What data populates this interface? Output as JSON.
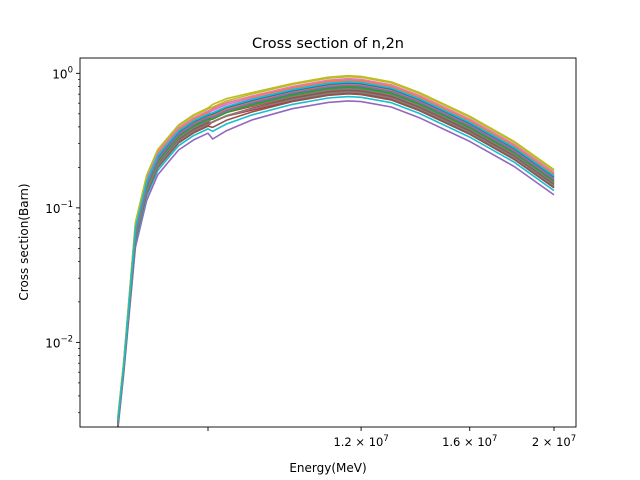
{
  "chart_data": {
    "type": "line",
    "title": "Cross section of n,2n",
    "xlabel": "Energy(MeV)",
    "ylabel": "Cross section(Barn)",
    "xscale": "log",
    "yscale": "log",
    "xlim": [
      5700000,
      21200000
    ],
    "ylim": [
      0.00235,
      1.3
    ],
    "grid": false,
    "legend": "none",
    "x_ticks": [
      {
        "value": 8000000,
        "label": ""
      },
      {
        "value": 12000000,
        "label": "1.2 × 10^7",
        "mant": "1.2",
        "exp": "7"
      },
      {
        "value": 16000000,
        "label": "1.6 × 10^7",
        "mant": "1.6",
        "exp": "7"
      },
      {
        "value": 20000000,
        "label": "2 × 10^7",
        "mant": "2",
        "exp": "7"
      }
    ],
    "y_ticks": [
      {
        "value": 0.01,
        "label": "10^-2",
        "base": "10",
        "exp": "−2"
      },
      {
        "value": 0.1,
        "label": "10^-1",
        "base": "10",
        "exp": "−1"
      },
      {
        "value": 1,
        "label": "10^0",
        "base": "10",
        "exp": "0"
      }
    ],
    "reference_curve": {
      "x": [
        6300000,
        6400000,
        6600000,
        6800000,
        7000000,
        7200000,
        7400000,
        7700000,
        8000000,
        8100000,
        8400000,
        9000000,
        10000000,
        11000000,
        11600000,
        12000000,
        13000000,
        14000000,
        16000000,
        18000000,
        20000000
      ],
      "y": [
        0.0025,
        0.0065,
        0.065,
        0.145,
        0.225,
        0.28,
        0.345,
        0.41,
        0.46,
        0.49,
        0.54,
        0.6,
        0.7,
        0.78,
        0.8,
        0.79,
        0.72,
        0.6,
        0.4,
        0.26,
        0.16
      ]
    },
    "series": [
      {
        "color": "#1f77b4",
        "scale": 1.0,
        "dip": 0.0
      },
      {
        "color": "#ff7f0e",
        "scale": 1.04,
        "dip": 0.05
      },
      {
        "color": "#2ca02c",
        "scale": 0.98,
        "dip": 0.02
      },
      {
        "color": "#d62728",
        "scale": 0.95,
        "dip": 0.0
      },
      {
        "color": "#9467bd",
        "scale": 0.78,
        "dip": 0.15
      },
      {
        "color": "#8c564b",
        "scale": 0.93,
        "dip": 0.05
      },
      {
        "color": "#e377c2",
        "scale": 1.1,
        "dip": 0.02
      },
      {
        "color": "#7f7f7f",
        "scale": 0.96,
        "dip": 0.0
      },
      {
        "color": "#bcbd22",
        "scale": 1.18,
        "dip": 0.03
      },
      {
        "color": "#17becf",
        "scale": 0.84,
        "dip": 0.1
      },
      {
        "color": "#1f77b4",
        "scale": 1.06,
        "dip": 0.04
      },
      {
        "color": "#ff7f0e",
        "scale": 1.12,
        "dip": 0.0
      },
      {
        "color": "#2ca02c",
        "scale": 0.99,
        "dip": 0.06
      },
      {
        "color": "#d62728",
        "scale": 0.89,
        "dip": 0.0
      },
      {
        "color": "#9467bd",
        "scale": 1.02,
        "dip": 0.05
      },
      {
        "color": "#8c564b",
        "scale": 0.88,
        "dip": 0.08
      },
      {
        "color": "#e377c2",
        "scale": 1.14,
        "dip": 0.03
      },
      {
        "color": "#7f7f7f",
        "scale": 0.91,
        "dip": 0.02
      },
      {
        "color": "#bcbd22",
        "scale": 1.2,
        "dip": 0.0
      },
      {
        "color": "#17becf",
        "scale": 1.08,
        "dip": 0.04
      }
    ]
  }
}
